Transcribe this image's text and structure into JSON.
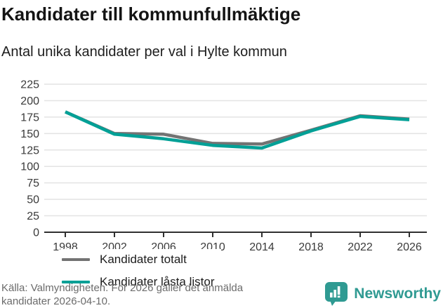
{
  "header": {
    "title": "Kandidater till kommunfullmäktige",
    "subtitle": "Antal unika kandidater per val i Hylte kommun"
  },
  "chart_data": {
    "type": "line",
    "title": "Kandidater till kommunfullmäktige",
    "subtitle": "Antal unika kandidater per val i Hylte kommun",
    "x": [
      1998,
      2002,
      2006,
      2010,
      2014,
      2018,
      2022,
      2026
    ],
    "series": [
      {
        "name": "Kandidater totalt",
        "color": "#737373",
        "values": [
          183,
          150,
          149,
          135,
          134,
          155,
          177,
          172
        ]
      },
      {
        "name": "Kandidater låsta listor",
        "color": "#00a096",
        "values": [
          183,
          149,
          142,
          132,
          128,
          154,
          176,
          171
        ]
      }
    ],
    "y_ticks": [
      0,
      25,
      50,
      75,
      100,
      125,
      150,
      175,
      200,
      225
    ],
    "ylim": [
      0,
      235
    ],
    "xlabel": "",
    "ylabel": "",
    "grid": true,
    "gridline_color": "#e3e3e3",
    "axis_color": "#2f2f2f",
    "legend_position": "inside-bottom-left"
  },
  "footer": {
    "lines": [
      "Källa: Valmyndigheten. För 2026 gäller det anmälda",
      "kandidater 2026-04-10."
    ]
  },
  "brand": {
    "name": "Newsworthy",
    "logo_icon": "bar-chart-speech-bubble-icon",
    "color": "#2f9a92"
  }
}
